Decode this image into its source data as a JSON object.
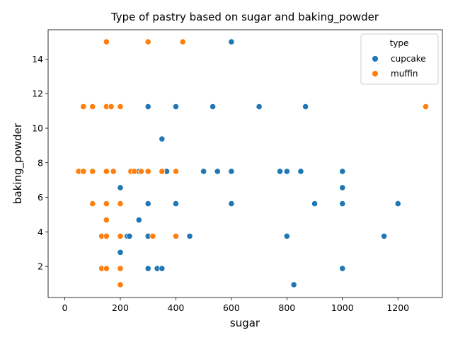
{
  "chart_data": {
    "type": "scatter",
    "title": "Type of pastry based on sugar and baking_powder",
    "xlabel": "sugar",
    "ylabel": "baking_powder",
    "xlim": [
      -60,
      1360
    ],
    "ylim": [
      0.2,
      15.7
    ],
    "xticks": [
      0,
      200,
      400,
      600,
      800,
      1000,
      1200
    ],
    "yticks": [
      2,
      4,
      6,
      8,
      10,
      12,
      14
    ],
    "grid": false,
    "legend": {
      "title": "type",
      "position": "top-right"
    },
    "series": [
      {
        "name": "cupcake",
        "color": "#1f77b4",
        "points": [
          [
            600,
            15
          ],
          [
            300,
            11.25
          ],
          [
            400,
            11.25
          ],
          [
            533,
            11.25
          ],
          [
            700,
            11.25
          ],
          [
            867,
            11.25
          ],
          [
            350,
            9.38
          ],
          [
            267,
            7.5
          ],
          [
            367,
            7.5
          ],
          [
            500,
            7.5
          ],
          [
            550,
            7.5
          ],
          [
            600,
            7.5
          ],
          [
            775,
            7.5
          ],
          [
            800,
            7.5
          ],
          [
            850,
            7.5
          ],
          [
            1000,
            7.5
          ],
          [
            200,
            6.56
          ],
          [
            1000,
            6.56
          ],
          [
            300,
            5.63
          ],
          [
            400,
            5.63
          ],
          [
            600,
            5.63
          ],
          [
            900,
            5.63
          ],
          [
            1000,
            5.63
          ],
          [
            1200,
            5.63
          ],
          [
            267,
            4.69
          ],
          [
            225,
            3.75
          ],
          [
            233,
            3.75
          ],
          [
            300,
            3.75
          ],
          [
            450,
            3.75
          ],
          [
            800,
            3.75
          ],
          [
            1150,
            3.75
          ],
          [
            200,
            2.81
          ],
          [
            300,
            1.88
          ],
          [
            333,
            1.88
          ],
          [
            350,
            1.88
          ],
          [
            1000,
            1.88
          ],
          [
            825,
            0.94
          ]
        ]
      },
      {
        "name": "muffin",
        "color": "#ff7f0e",
        "points": [
          [
            150,
            15
          ],
          [
            300,
            15
          ],
          [
            425,
            15
          ],
          [
            67,
            11.25
          ],
          [
            100,
            11.25
          ],
          [
            150,
            11.25
          ],
          [
            167,
            11.25
          ],
          [
            200,
            11.25
          ],
          [
            1300,
            11.25
          ],
          [
            50,
            7.5
          ],
          [
            67,
            7.5
          ],
          [
            100,
            7.5
          ],
          [
            150,
            7.5
          ],
          [
            175,
            7.5
          ],
          [
            238,
            7.5
          ],
          [
            250,
            7.5
          ],
          [
            275,
            7.5
          ],
          [
            300,
            7.5
          ],
          [
            350,
            7.5
          ],
          [
            400,
            7.5
          ],
          [
            100,
            5.63
          ],
          [
            150,
            5.63
          ],
          [
            200,
            5.63
          ],
          [
            150,
            4.69
          ],
          [
            133,
            3.75
          ],
          [
            150,
            3.75
          ],
          [
            200,
            3.75
          ],
          [
            317,
            3.75
          ],
          [
            400,
            3.75
          ],
          [
            133,
            1.88
          ],
          [
            150,
            1.88
          ],
          [
            200,
            1.88
          ],
          [
            200,
            0.94
          ]
        ]
      }
    ]
  }
}
